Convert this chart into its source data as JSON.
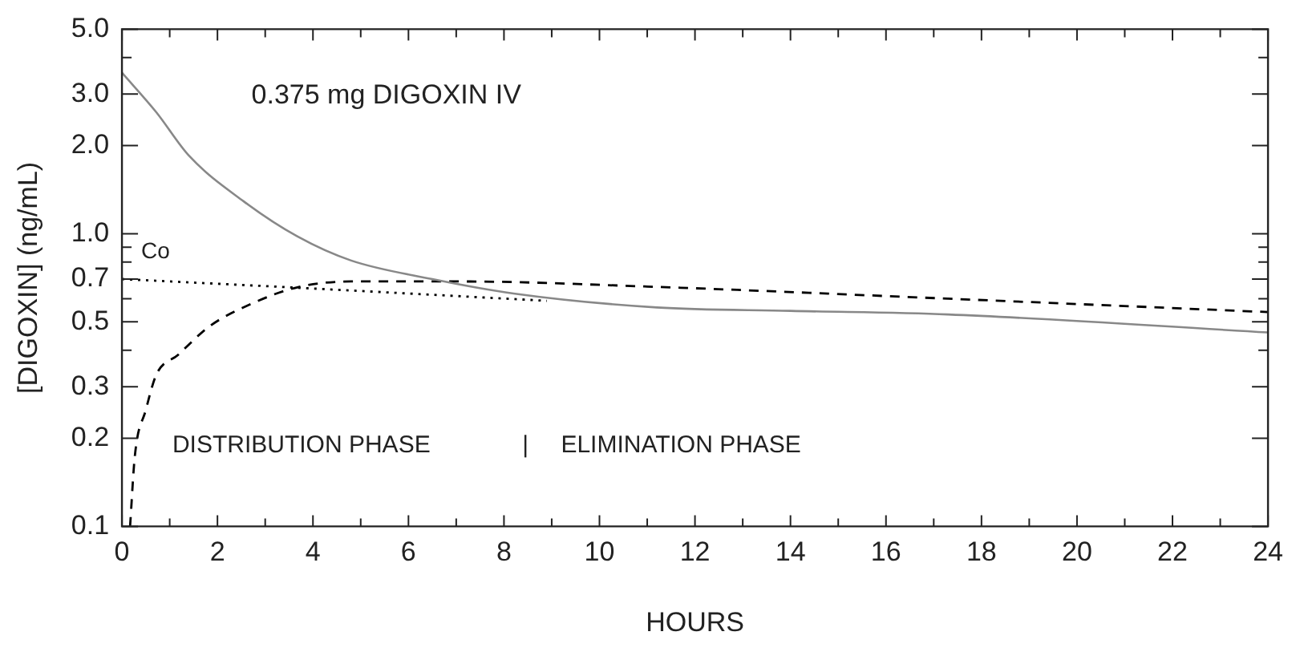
{
  "chart_data": {
    "type": "line",
    "xlabel": "HOURS",
    "ylabel": "[DIGOXIN] (ng/mL)",
    "log": "y",
    "grid": false,
    "legend": false,
    "marker": "none",
    "xlim": [
      0,
      24
    ],
    "ylim": [
      0.1,
      5
    ],
    "xticks": [
      0,
      {
        "value": 1,
        "label": null
      },
      2,
      {
        "value": 3,
        "label": null
      },
      4,
      {
        "value": 5,
        "label": null
      },
      6,
      {
        "value": 7,
        "label": null
      },
      8,
      {
        "value": 9,
        "label": null
      },
      10,
      {
        "value": 11,
        "label": null
      },
      12,
      {
        "value": 13,
        "label": null
      },
      14,
      {
        "value": 15,
        "label": null
      },
      16,
      {
        "value": 17,
        "label": null
      },
      18,
      {
        "value": 19,
        "label": null
      },
      20,
      {
        "value": 21,
        "label": null
      },
      22,
      {
        "value": 23,
        "label": null
      },
      24
    ],
    "yticks": [
      0.1,
      0.2,
      0.3,
      {
        "value": 0.4,
        "label": null
      },
      0.5,
      {
        "value": 0.6,
        "label": null
      },
      0.7,
      {
        "value": 0.8,
        "label": null
      },
      {
        "value": 0.9,
        "label": null
      },
      {
        "value": 1,
        "label": "1.0"
      },
      {
        "value": 2,
        "label": "2.0"
      },
      {
        "value": 3,
        "label": "3.0"
      },
      {
        "value": 4,
        "label": null
      },
      {
        "value": 5,
        "label": "5.0"
      }
    ],
    "series": [
      {
        "color": "#888888",
        "line_style": "solid",
        "x": [
          0,
          0.72,
          1.4,
          2.55,
          3.67,
          4.8,
          6.5,
          8.2,
          11.2,
          14,
          17.3,
          24
        ],
        "values": [
          3.55,
          2.6,
          1.85,
          1.29,
          0.98,
          0.81,
          0.7,
          0.625,
          0.56,
          0.545,
          0.53,
          0.46
        ]
      },
      {
        "color": "#000000",
        "line_style": "dashed",
        "x": [
          0.17,
          0.27,
          0.5,
          0.72,
          1.17,
          1.85,
          2.75,
          3.67,
          4.8,
          7.1,
          11,
          17.3,
          24
        ],
        "values": [
          0.1,
          0.174,
          0.25,
          0.33,
          0.385,
          0.485,
          0.58,
          0.656,
          0.687,
          0.687,
          0.66,
          0.6,
          0.54
        ]
      },
      {
        "color": "#000000",
        "line_style": "dotted",
        "x": [
          0,
          3.67,
          8.9
        ],
        "values": [
          0.7,
          0.654,
          0.59
        ]
      }
    ],
    "annotations": [
      "0.375 mg DIGOXIN IV",
      {
        "text": "Co",
        "x": 0,
        "y": 0.7
      },
      "DISTRIBUTION PHASE",
      "|",
      "ELIMINATION PHASE"
    ]
  }
}
